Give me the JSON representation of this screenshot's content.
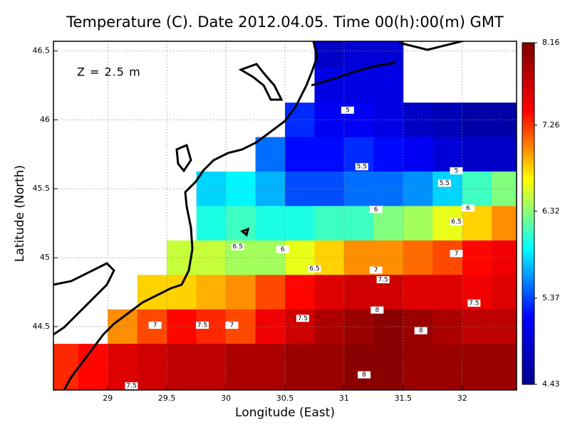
{
  "chart_data": {
    "type": "heatmap",
    "title": "Temperature (C). Date 2012.04.05. Time 00(h):00(m) GMT",
    "x_label": "Longitude (East)",
    "y_label": "Latitude (North)",
    "annotation": "Z = 2.5 m",
    "xlim": [
      28.54,
      32.46
    ],
    "ylim": [
      44.04,
      46.57
    ],
    "xticks": [
      29,
      29.5,
      30,
      30.5,
      31,
      31.5,
      32
    ],
    "yticks": [
      44.5,
      45,
      45.5,
      46,
      46.5
    ],
    "grid": true,
    "clim": [
      4.43,
      8.16
    ],
    "cticks": [
      4.43,
      5.37,
      6.32,
      7.26,
      8.16
    ],
    "colormap": [
      "#00008f",
      "#0000ff",
      "#00ffff",
      "#ffff00",
      "#ff0000",
      "#800000"
    ],
    "x": [
      28.625,
      28.875,
      29.125,
      29.375,
      29.625,
      29.875,
      30.125,
      30.375,
      30.625,
      30.875,
      31.125,
      31.375,
      31.625,
      31.875,
      32.125,
      32.375
    ],
    "y": [
      46.5,
      46.25,
      46.0,
      45.75,
      45.5,
      45.25,
      45.0,
      44.75,
      44.5,
      44.25,
      44.0
    ],
    "values": [
      [
        null,
        null,
        null,
        null,
        null,
        null,
        null,
        null,
        null,
        4.8,
        4.9,
        4.9,
        null,
        null,
        null,
        null
      ],
      [
        null,
        null,
        null,
        null,
        null,
        null,
        null,
        null,
        null,
        5.0,
        5.0,
        5.0,
        null,
        null,
        null,
        null
      ],
      [
        null,
        null,
        null,
        null,
        null,
        null,
        null,
        null,
        5.3,
        5.1,
        5.1,
        5.0,
        4.8,
        4.7,
        4.6,
        4.6
      ],
      [
        null,
        null,
        null,
        null,
        null,
        null,
        null,
        5.5,
        5.2,
        5.2,
        5.3,
        5.2,
        5.1,
        4.9,
        4.8,
        4.8
      ],
      [
        null,
        null,
        null,
        null,
        null,
        5.8,
        5.9,
        5.7,
        5.4,
        5.4,
        5.5,
        5.5,
        5.6,
        5.8,
        6.1,
        6.3
      ],
      [
        null,
        null,
        null,
        null,
        null,
        6.0,
        6.1,
        6.0,
        6.0,
        6.1,
        6.1,
        6.3,
        6.4,
        6.6,
        6.8,
        7.0
      ],
      [
        null,
        null,
        null,
        null,
        6.5,
        6.5,
        6.4,
        6.4,
        6.6,
        6.8,
        7.0,
        7.0,
        7.1,
        7.2,
        7.4,
        7.5
      ],
      [
        null,
        null,
        null,
        6.8,
        6.8,
        6.9,
        7.0,
        7.2,
        7.4,
        7.6,
        7.7,
        7.7,
        7.6,
        7.6,
        7.5,
        7.6
      ],
      [
        null,
        null,
        7.0,
        7.2,
        7.4,
        7.3,
        7.2,
        7.5,
        7.7,
        7.9,
        8.0,
        8.1,
        8.0,
        7.9,
        7.8,
        7.8
      ],
      [
        7.3,
        7.4,
        7.6,
        7.7,
        7.8,
        7.8,
        7.9,
        7.9,
        8.0,
        8.0,
        8.1,
        8.1,
        8.0,
        8.0,
        8.0,
        8.0
      ],
      [
        7.3,
        7.4,
        7.6,
        7.7,
        7.8,
        7.8,
        7.9,
        7.9,
        8.0,
        8.0,
        8.1,
        8.1,
        8.0,
        8.0,
        8.0,
        8.0
      ]
    ],
    "contour_labels": [
      {
        "value": 5,
        "x": 31.03,
        "y": 46.07
      },
      {
        "value": 5.5,
        "x": 31.15,
        "y": 45.66
      },
      {
        "value": 5,
        "x": 31.95,
        "y": 45.63
      },
      {
        "value": 5.5,
        "x": 31.85,
        "y": 45.54
      },
      {
        "value": 6,
        "x": 31.27,
        "y": 45.35
      },
      {
        "value": 6,
        "x": 32.05,
        "y": 45.36
      },
      {
        "value": 6.5,
        "x": 31.95,
        "y": 45.26
      },
      {
        "value": 6.5,
        "x": 30.1,
        "y": 45.08
      },
      {
        "value": 6,
        "x": 30.48,
        "y": 45.06
      },
      {
        "value": 7,
        "x": 31.95,
        "y": 45.03
      },
      {
        "value": 6.5,
        "x": 30.75,
        "y": 44.92
      },
      {
        "value": 7,
        "x": 31.27,
        "y": 44.91
      },
      {
        "value": 7.5,
        "x": 31.33,
        "y": 44.84
      },
      {
        "value": 7.5,
        "x": 32.1,
        "y": 44.67
      },
      {
        "value": 8,
        "x": 31.28,
        "y": 44.62
      },
      {
        "value": 7.5,
        "x": 30.65,
        "y": 44.56
      },
      {
        "value": 8,
        "x": 31.65,
        "y": 44.47
      },
      {
        "value": 7,
        "x": 29.4,
        "y": 44.51
      },
      {
        "value": 7.5,
        "x": 29.8,
        "y": 44.51
      },
      {
        "value": 7,
        "x": 30.05,
        "y": 44.51
      },
      {
        "value": 8,
        "x": 31.17,
        "y": 44.15
      },
      {
        "value": 7.5,
        "x": 29.2,
        "y": 44.07
      }
    ]
  }
}
